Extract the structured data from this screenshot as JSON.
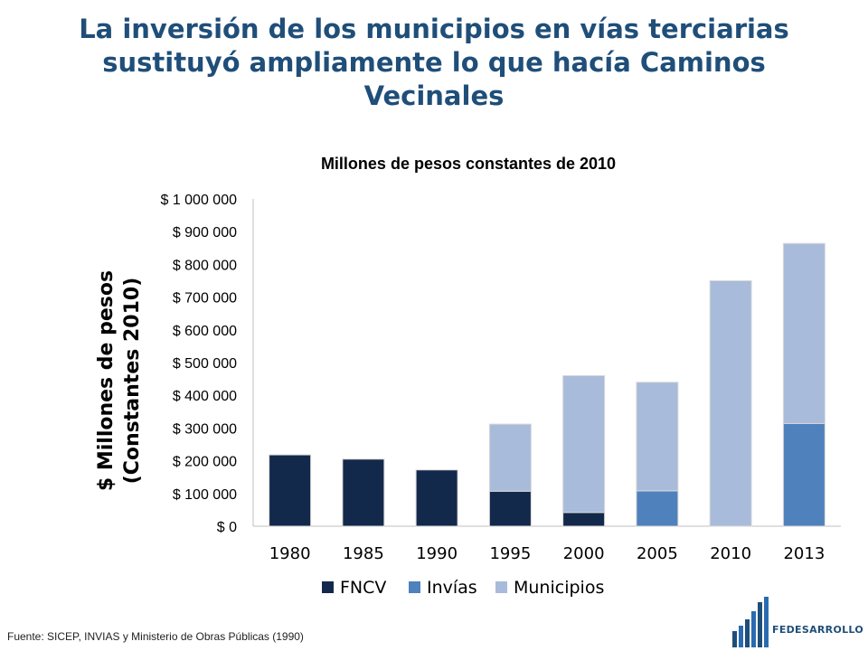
{
  "slide": {
    "title": "La inversión de los municipios en vías terciarias sustituyó ampliamente lo que hacía Caminos Vecinales",
    "source": "Fuente: SICEP, INVIAS y Ministerio de Obras Públicas (1990)",
    "logo_text": "FEDESARROLLO"
  },
  "chart_data": {
    "type": "bar",
    "stacked": true,
    "title": "Millones de pesos constantes de 2010",
    "ylabel_lines": [
      "$ Millones de pesos",
      "(Constantes 2010)"
    ],
    "categories": [
      "1980",
      "1985",
      "1990",
      "1995",
      "2000",
      "2005",
      "2010",
      "2013"
    ],
    "ylim": [
      0,
      1000000
    ],
    "yticks": [
      0,
      100000,
      200000,
      300000,
      400000,
      500000,
      600000,
      700000,
      800000,
      900000,
      1000000
    ],
    "ytick_labels": [
      "$ 0",
      "$ 100 000",
      "$ 200 000",
      "$ 300 000",
      "$ 400 000",
      "$ 500 000",
      "$ 600 000",
      "$ 700 000",
      "$ 800 000",
      "$ 900 000",
      "$ 1 000 000"
    ],
    "grid": false,
    "legend_position": "bottom",
    "series": [
      {
        "name": "FNCV",
        "color": "#13294b",
        "values": [
          218000,
          205000,
          172000,
          107000,
          42000,
          0,
          0,
          0
        ]
      },
      {
        "name": "Invías",
        "color": "#4f81bd",
        "values": [
          0,
          0,
          0,
          0,
          0,
          108000,
          0,
          314000
        ]
      },
      {
        "name": "Municipios",
        "color": "#a9bbda",
        "values": [
          0,
          0,
          0,
          205000,
          418000,
          332000,
          750000,
          550000
        ]
      }
    ]
  }
}
